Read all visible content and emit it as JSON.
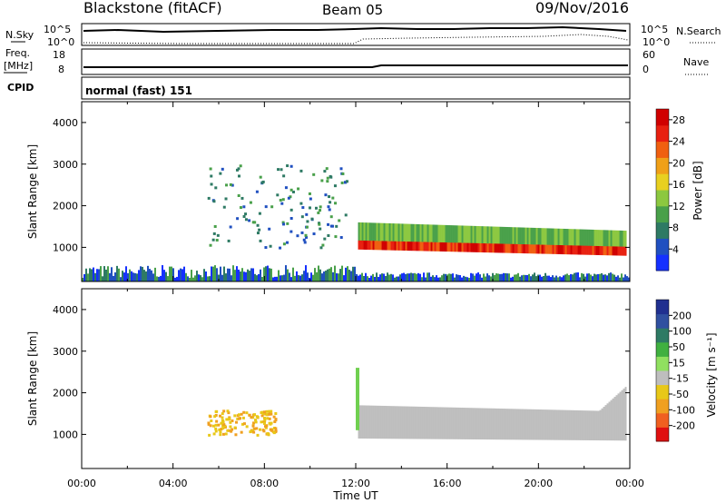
{
  "header": {
    "title": "Blackstone (fitACF)",
    "beam": "Beam 05",
    "date": "09/Nov/2016"
  },
  "summary_panels": {
    "nsky_label": "N.Sky",
    "nsearch_label": "N.Search",
    "noise_ticks": [
      "10^5",
      "10^0"
    ],
    "freq_label": "Freq.",
    "freq_unit": "[MHz]",
    "freq_ticks": [
      18,
      8
    ],
    "nave_label": "Nave",
    "nave_ticks": [
      60,
      0
    ],
    "cpid_label": "CPID",
    "cpid_text": "normal (fast) 151"
  },
  "chart_data": [
    {
      "type": "heatmap",
      "name": "power-panel",
      "ylabel": "Slant Range [km]",
      "yticks": [
        1000,
        2000,
        3000,
        4000
      ],
      "ylim": [
        180,
        4500
      ],
      "xlabel": "Time UT",
      "xticks": [
        "00:00",
        "04:00",
        "08:00",
        "12:00",
        "16:00",
        "20:00",
        "00:00"
      ],
      "xlim_hours": [
        0,
        24
      ],
      "colorbar": {
        "label": "Power [dB]",
        "ticks": [
          4,
          8,
          12,
          16,
          20,
          24,
          28
        ],
        "range": [
          0,
          30
        ],
        "colors": [
          "#1530ff",
          "#2050c0",
          "#2e7a64",
          "#49a04a",
          "#8cc840",
          "#e8d020",
          "#f0a018",
          "#f06010",
          "#e82010",
          "#d00000"
        ]
      },
      "features": [
        {
          "feature": "ground-scatter-near-range",
          "t_start": 0.0,
          "t_end": 24.0,
          "range_km": [
            180,
            350
          ],
          "value": "4-16 dB"
        },
        {
          "feature": "evening-echo-band",
          "t_start": 12.1,
          "t_end": 23.8,
          "range_km": [
            800,
            1650
          ],
          "value": "8-30 dB"
        },
        {
          "feature": "morning-echo-patches",
          "t_start": 5.5,
          "t_end": 11.6,
          "range_km": [
            1000,
            3000
          ],
          "value": "4-12 dB"
        }
      ]
    },
    {
      "type": "heatmap",
      "name": "velocity-panel",
      "ylabel": "Slant Range [km]",
      "yticks": [
        1000,
        2000,
        3000,
        4000
      ],
      "ylim": [
        180,
        4500
      ],
      "xlabel": "Time UT",
      "xticks": [
        "00:00",
        "04:00",
        "08:00",
        "12:00",
        "16:00",
        "20:00",
        "00:00"
      ],
      "xlim_hours": [
        0,
        24
      ],
      "colorbar": {
        "label": "Velocity [m s⁻¹]",
        "ticks": [
          "200",
          "100",
          "50",
          "15",
          "-15",
          "-50",
          "-100",
          "-200"
        ],
        "range": [
          -250,
          250
        ],
        "colors": [
          "#e01010",
          "#f06020",
          "#f0a020",
          "#e8c818",
          "#bebebe",
          "#90e060",
          "#40b040",
          "#2e7a64",
          "#3050a0",
          "#203090"
        ]
      },
      "features": [
        {
          "feature": "ground-scatter-grey-band",
          "t_start": 12.1,
          "t_end": 23.8,
          "range_km": [
            800,
            1700
          ],
          "value": "-15 to 15 m/s"
        },
        {
          "feature": "morning-echo-patches",
          "t_start": 5.5,
          "t_end": 8.5,
          "range_km": [
            1000,
            1600
          ],
          "value": "-50 to -15 m/s"
        }
      ]
    }
  ]
}
